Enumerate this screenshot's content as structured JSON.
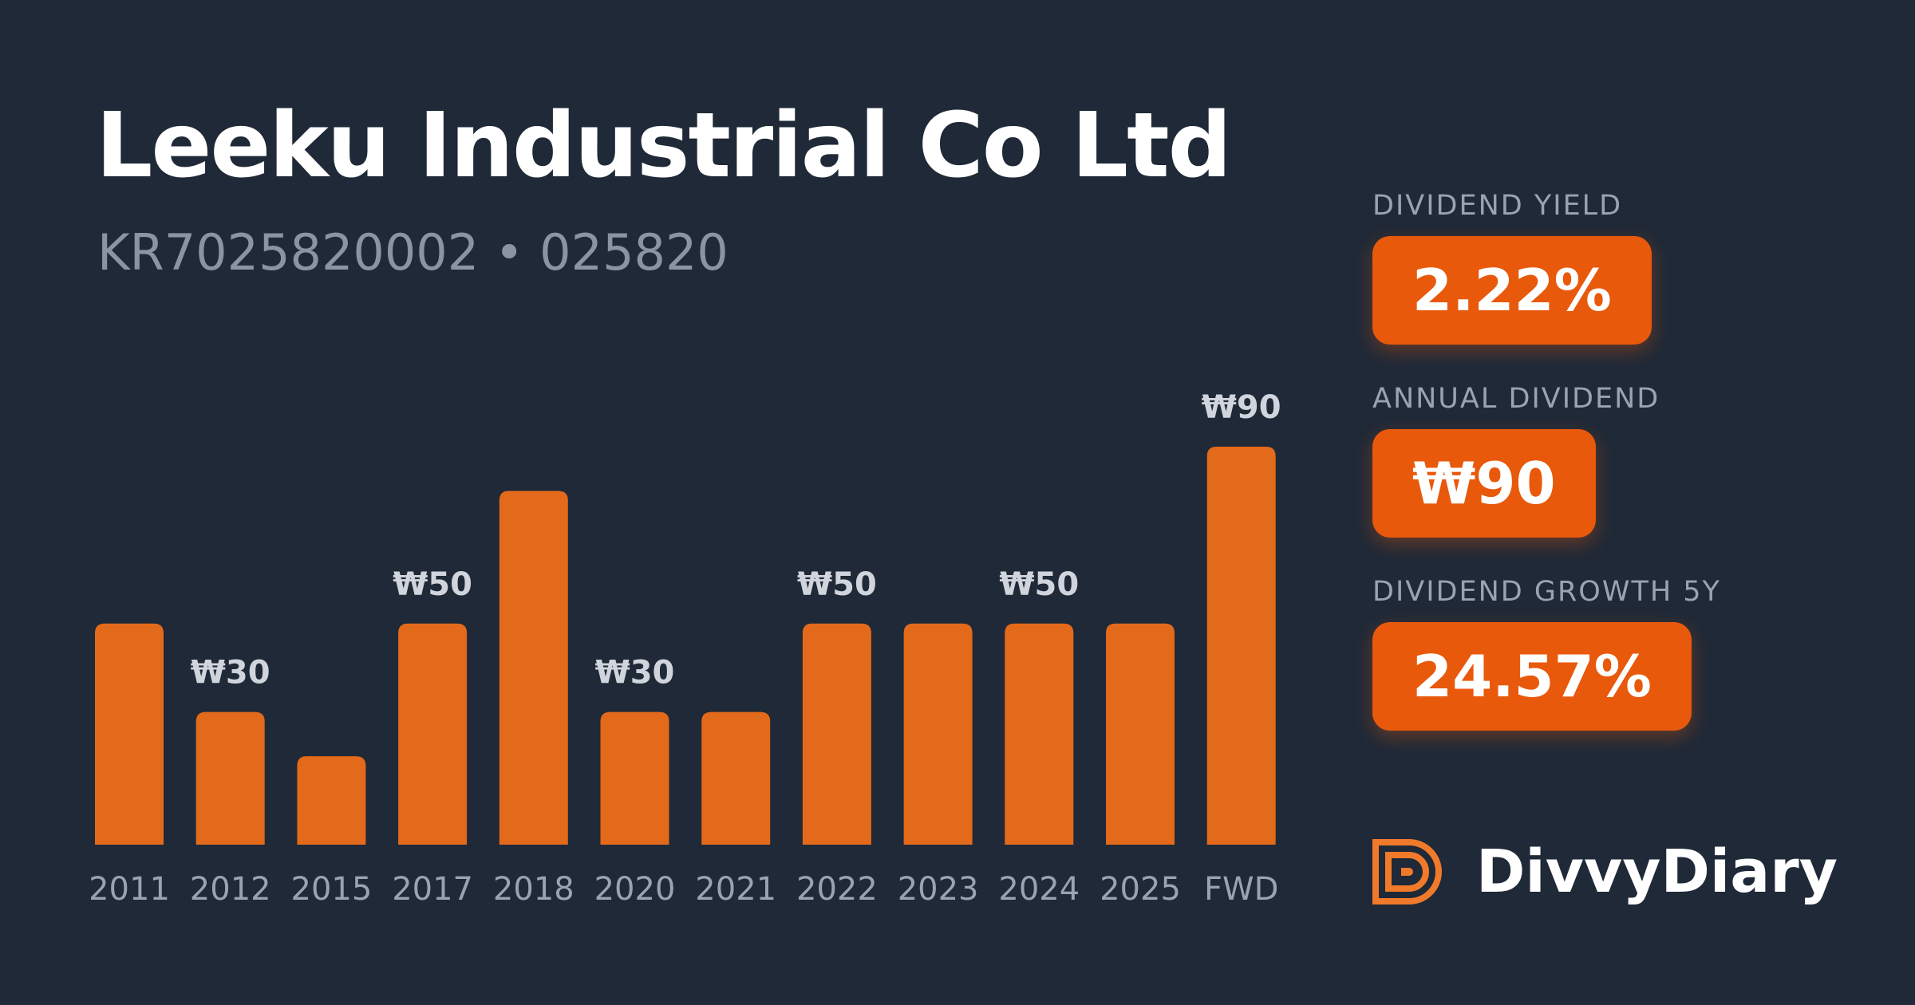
{
  "header": {
    "title": "Leeku Industrial Co Ltd",
    "subtitle": "KR7025820002 • 025820"
  },
  "chart_data": {
    "type": "bar",
    "color": "#e36a1a",
    "categories": [
      "2011",
      "2012",
      "2015",
      "2017",
      "2018",
      "2020",
      "2021",
      "2022",
      "2023",
      "2024",
      "2025",
      "FWD"
    ],
    "values": [
      50,
      30,
      20,
      50,
      80,
      30,
      30,
      50,
      50,
      50,
      50,
      90
    ],
    "value_labels": [
      null,
      "₩30",
      null,
      "₩50",
      null,
      "₩30",
      null,
      "₩50",
      null,
      "₩50",
      null,
      "₩90"
    ]
  },
  "stats": [
    {
      "label": "DIVIDEND YIELD",
      "value": "2.22%"
    },
    {
      "label": "ANNUAL DIVIDEND",
      "value": "₩90"
    },
    {
      "label": "DIVIDEND GROWTH 5Y",
      "value": "24.57%"
    }
  ],
  "brand": "DivvyDiary"
}
